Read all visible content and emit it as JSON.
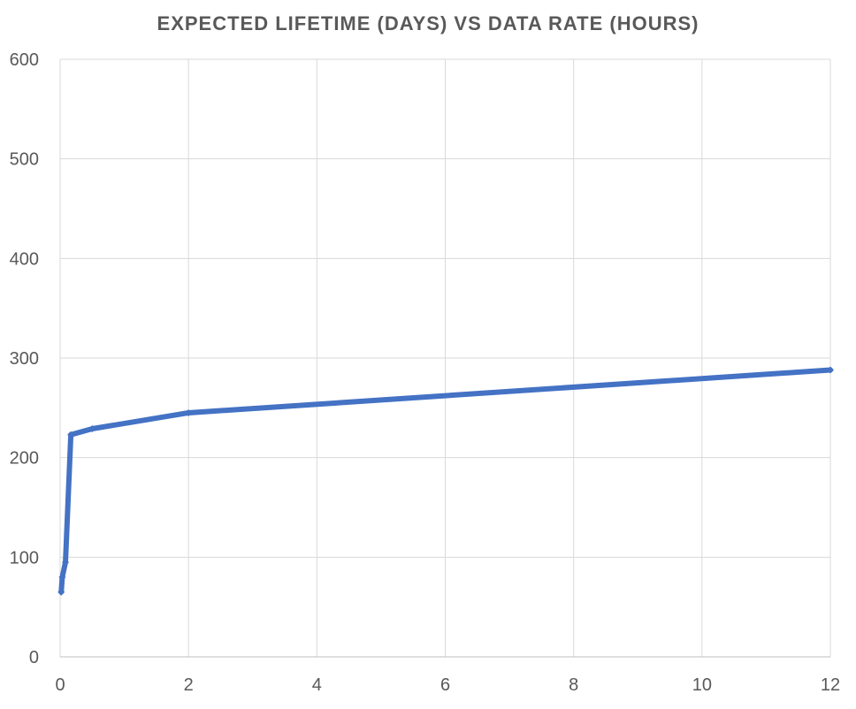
{
  "chart_data": {
    "type": "line",
    "title": "EXPECTED LIFETIME (DAYS) VS DATA RATE (HOURS)",
    "xlabel": "",
    "ylabel": "",
    "xlim": [
      0,
      12
    ],
    "ylim": [
      0,
      600
    ],
    "x_ticks": [
      0,
      2,
      4,
      6,
      8,
      10,
      12
    ],
    "y_ticks": [
      0,
      100,
      200,
      300,
      400,
      500,
      600
    ],
    "grid": true,
    "legend": "none",
    "series": [
      {
        "color": "#4472C4",
        "x": [
          0.017,
          0.033,
          0.083,
          0.167,
          0.5,
          2,
          12
        ],
        "y": [
          65,
          80,
          95,
          223,
          229,
          245,
          288
        ]
      }
    ]
  }
}
